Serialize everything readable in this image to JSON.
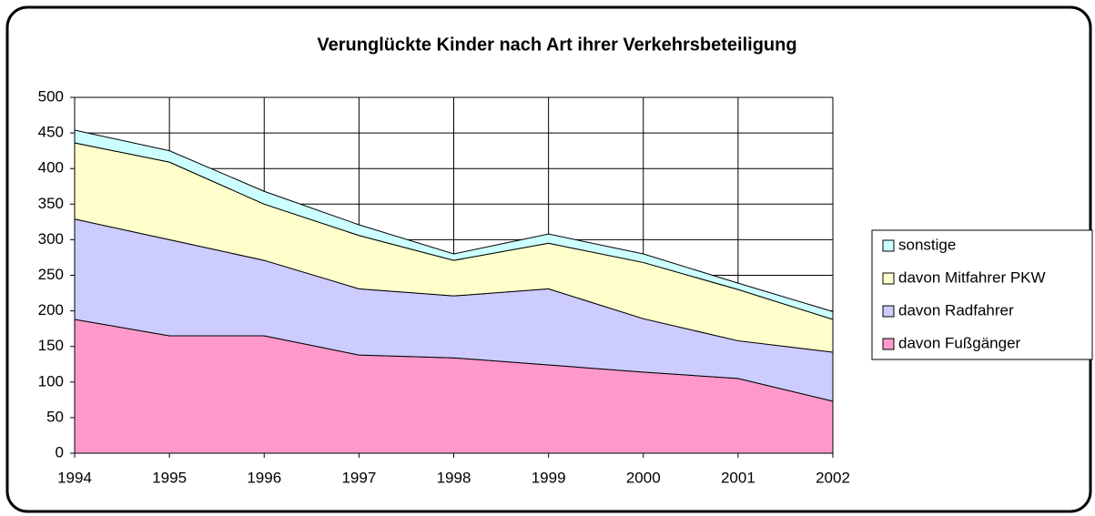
{
  "chart_data": {
    "type": "stacked_area",
    "title": "Verunglückte Kinder nach Art ihrer Verkehrsbeteiligung",
    "categories": [
      "1994",
      "1995",
      "1996",
      "1997",
      "1998",
      "1999",
      "2000",
      "2001",
      "2002"
    ],
    "series": [
      {
        "name": "davon Fußgänger",
        "color": "#ff99cc",
        "values": [
          188,
          165,
          165,
          138,
          134,
          124,
          114,
          105,
          73
        ]
      },
      {
        "name": "davon Radfahrer",
        "color": "#ccccff",
        "values": [
          141,
          135,
          106,
          93,
          87,
          107,
          75,
          53,
          69
        ]
      },
      {
        "name": "davon Mitfahrer PKW",
        "color": "#ffffcc",
        "values": [
          107,
          109,
          79,
          75,
          50,
          64,
          79,
          72,
          46
        ]
      },
      {
        "name": "sonstige",
        "color": "#ccffff",
        "values": [
          18,
          16,
          18,
          15,
          9,
          13,
          12,
          9,
          11
        ]
      }
    ],
    "ylim": [
      0,
      500
    ],
    "yticks": [
      0,
      50,
      100,
      150,
      200,
      250,
      300,
      350,
      400,
      450,
      500
    ],
    "grid": true,
    "legend": "right"
  }
}
